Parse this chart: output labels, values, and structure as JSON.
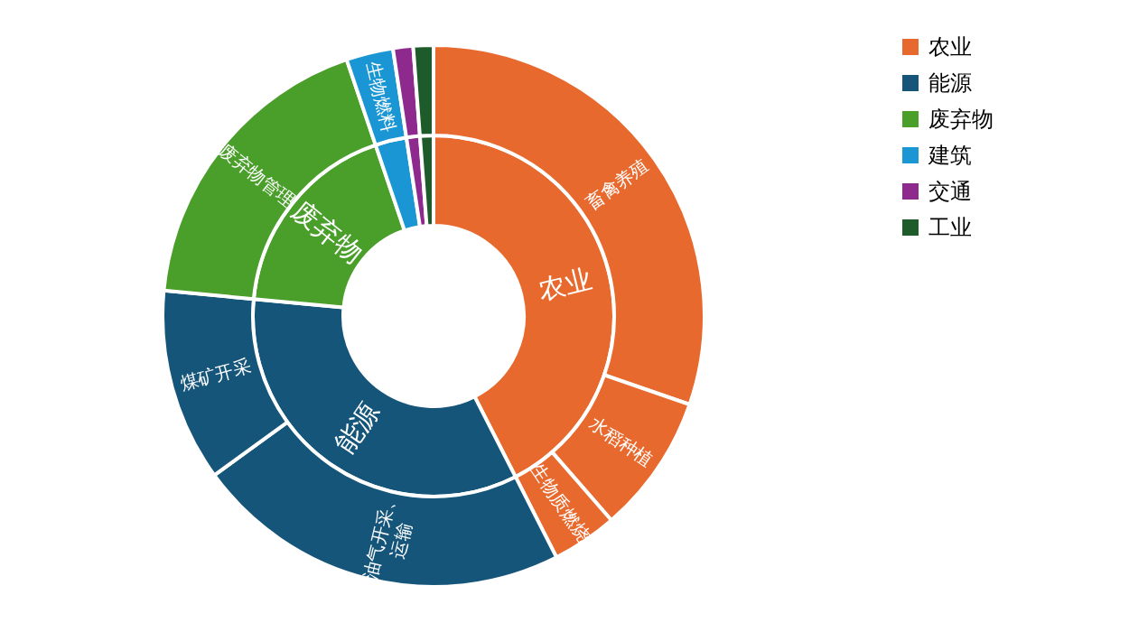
{
  "chart_data": [
    {
      "type": "donut",
      "categories": [
        "农业",
        "能源",
        "废弃物",
        "建筑",
        "交通",
        "工业"
      ],
      "values": [
        42.5,
        34,
        18.3,
        2.8,
        1.2,
        1.2
      ],
      "colors": [
        "#e8692d",
        "#15557a",
        "#4a9e2a",
        "#1a96d4",
        "#8e2a8e",
        "#1e5b2a"
      ],
      "value_labels": [
        "农业",
        "能源",
        "废弃物",
        null,
        null,
        null
      ],
      "legend": "right"
    },
    {
      "type": "donut",
      "categories": [
        "畜禽养殖",
        "水稻种植",
        "生物质燃烧",
        "油气开采、运输",
        "煤矿开采",
        "废弃物管理",
        "生物燃料",
        null,
        null
      ],
      "values": [
        30.3,
        8.3,
        3.9,
        22.5,
        11.5,
        18.3,
        2.8,
        1.2,
        1.2
      ],
      "colors": [
        "#e8692d",
        "#e8692d",
        "#e8692d",
        "#15557a",
        "#15557a",
        "#4a9e2a",
        "#1a96d4",
        "#8e2a8e",
        "#1e5b2a"
      ]
    }
  ]
}
